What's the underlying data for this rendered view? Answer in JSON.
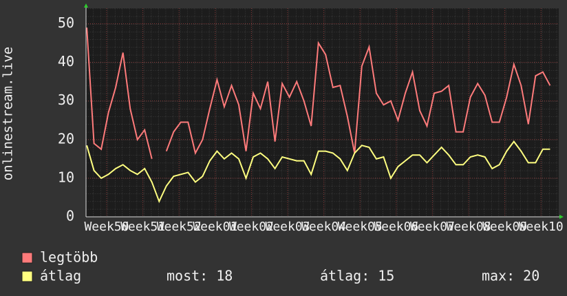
{
  "chart_data": {
    "type": "line",
    "ylabel": "onlinestream.live",
    "x": [
      -0.55,
      -0.35,
      -0.15,
      0.05,
      0.25,
      0.45,
      0.65,
      0.85,
      1.05,
      1.25,
      1.45,
      1.65,
      1.85,
      2.05,
      2.25,
      2.45,
      2.65,
      2.85,
      3.05,
      3.25,
      3.45,
      3.65,
      3.85,
      4.05,
      4.25,
      4.45,
      4.65,
      4.85,
      5.05,
      5.25,
      5.45,
      5.65,
      5.85,
      6.05,
      6.25,
      6.45,
      6.65,
      6.85,
      7.05,
      7.25,
      7.45,
      7.65,
      7.85,
      8.05,
      8.25,
      8.45,
      8.65,
      8.85,
      9.05,
      9.25,
      9.45,
      9.65,
      9.85,
      10.05,
      10.25,
      10.45,
      10.65,
      10.85,
      11.05,
      11.25,
      11.45,
      11.65,
      11.85,
      12.05,
      12.25
    ],
    "series": [
      {
        "name": "legtöbb",
        "color": "#ff7b7b",
        "values": [
          49,
          19,
          17.5,
          27,
          33.5,
          42.5,
          28,
          20,
          22.5,
          15,
          null,
          17,
          22,
          24.5,
          24.5,
          16.5,
          20,
          28,
          35.5,
          28.5,
          34,
          29,
          17,
          32,
          28,
          35,
          19.5,
          34.5,
          31,
          35,
          30,
          23.5,
          45,
          42,
          33.5,
          34,
          26,
          16.5,
          39,
          44,
          32,
          29,
          30,
          25,
          32,
          37.5,
          27.5,
          23.5,
          32,
          32.5,
          34,
          22,
          22,
          31,
          34.5,
          31.5,
          24.5,
          24.5,
          31,
          39.5,
          34,
          24,
          36.5,
          37.5,
          34
        ]
      },
      {
        "name": "átlag",
        "color": "#ffff80",
        "values": [
          18.5,
          12,
          10,
          11,
          12.5,
          13.5,
          12,
          11,
          12.5,
          9,
          4,
          8,
          10.5,
          11,
          11.5,
          9,
          10.5,
          14.5,
          17,
          15,
          16.5,
          15,
          10,
          15.5,
          16.5,
          15,
          12.5,
          15.5,
          15,
          14.5,
          14.5,
          11,
          17,
          17,
          16.5,
          15,
          12,
          16.5,
          18.5,
          18,
          15,
          15.5,
          10,
          13,
          14.5,
          16,
          16,
          14,
          16,
          18,
          16,
          13.5,
          13.5,
          15.5,
          16,
          15.5,
          12.5,
          13.5,
          17,
          19.5,
          17,
          14,
          14,
          17.5,
          17.5
        ]
      }
    ],
    "xlim": [
      -0.57,
      12.49
    ],
    "xticks": [
      {
        "value": 0,
        "label": "Week50"
      },
      {
        "value": 1,
        "label": "Week51"
      },
      {
        "value": 2,
        "label": "Week52"
      },
      {
        "value": 3,
        "label": "Week01"
      },
      {
        "value": 4,
        "label": "Week02"
      },
      {
        "value": 5,
        "label": "Week03"
      },
      {
        "value": 6,
        "label": "Week04"
      },
      {
        "value": 7,
        "label": "Week05"
      },
      {
        "value": 8,
        "label": "Week06"
      },
      {
        "value": 9,
        "label": "Week07"
      },
      {
        "value": 10,
        "label": "Week08"
      },
      {
        "value": 11,
        "label": "Week09"
      },
      {
        "value": 12,
        "label": "Week10"
      }
    ],
    "ylim": [
      0,
      54
    ],
    "yticks": [
      0,
      10,
      20,
      30,
      40,
      50
    ],
    "grid": true,
    "stats": [
      {
        "label": "most:",
        "value": 18
      },
      {
        "label": "átlag:",
        "value": 15
      },
      {
        "label": "max:",
        "value": 20
      }
    ]
  }
}
